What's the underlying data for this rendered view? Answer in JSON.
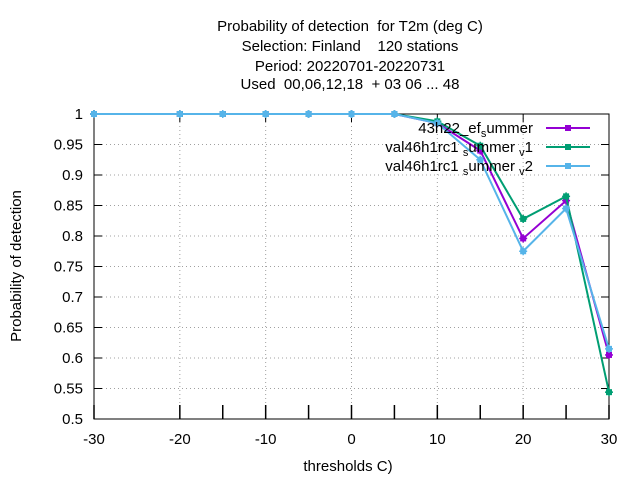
{
  "chart_data": {
    "type": "line",
    "title_lines": [
      "Probability of detection  for T2m (deg C)",
      "Selection: Finland    120 stations",
      "Period: 20220701-20220731",
      "Used  00,06,12,18  + 03 06 ... 48"
    ],
    "xlabel": "thresholds C)",
    "ylabel": "Probability of detection",
    "xlim": [
      -30,
      30
    ],
    "ylim": [
      0.5,
      1.0
    ],
    "xticks": [
      -30,
      -20,
      -10,
      0,
      10,
      20,
      30
    ],
    "yticks": [
      0.5,
      0.55,
      0.6,
      0.65,
      0.7,
      0.75,
      0.8,
      0.85,
      0.9,
      0.95,
      1.0
    ],
    "ytick_labels": [
      "0.5",
      "0.55",
      "0.6",
      "0.65",
      "0.7",
      "0.75",
      "0.8",
      "0.85",
      "0.9",
      "0.95",
      "1"
    ],
    "x": [
      -30,
      -20,
      -15,
      -10,
      -5,
      0,
      5,
      10,
      15,
      20,
      25,
      30
    ],
    "series": [
      {
        "name": "43h22_ef_summer",
        "legend_parts": [
          "43h22",
          "ef",
          "s",
          "ummer"
        ],
        "color": "#9400d3",
        "values": [
          1.0,
          1.0,
          1.0,
          1.0,
          1.0,
          1.0,
          1.0,
          0.985,
          0.94,
          0.796,
          0.858,
          0.605
        ]
      },
      {
        "name": "val46h1rc1_summer_v1",
        "legend_parts": [
          "val46h1rc1",
          "s",
          "ummer",
          "v",
          "1"
        ],
        "color": "#009e73",
        "values": [
          1.0,
          1.0,
          1.0,
          1.0,
          1.0,
          1.0,
          1.0,
          0.988,
          0.948,
          0.828,
          0.865,
          0.544
        ]
      },
      {
        "name": "val46h1rc1_summer_v2",
        "legend_parts": [
          "val46h1rc1",
          "s",
          "ummer",
          "v",
          "2"
        ],
        "color": "#56b4e9",
        "values": [
          1.0,
          1.0,
          1.0,
          1.0,
          1.0,
          1.0,
          1.0,
          0.985,
          0.925,
          0.775,
          0.845,
          0.615
        ]
      }
    ],
    "grid": true,
    "legend_position": "top-right"
  }
}
